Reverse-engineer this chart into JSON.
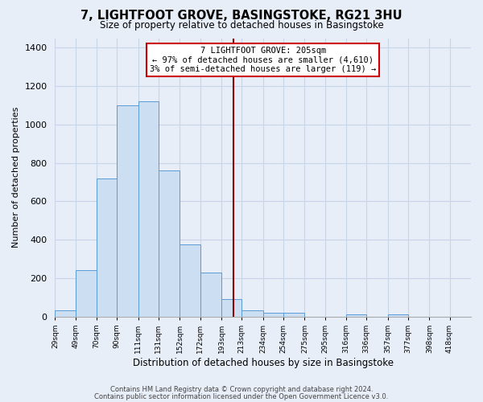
{
  "title": "7, LIGHTFOOT GROVE, BASINGSTOKE, RG21 3HU",
  "subtitle": "Size of property relative to detached houses in Basingstoke",
  "xlabel": "Distribution of detached houses by size in Basingstoke",
  "ylabel": "Number of detached properties",
  "bar_edges": [
    29,
    49,
    70,
    90,
    111,
    131,
    152,
    172,
    193,
    213,
    234,
    254,
    275,
    295,
    316,
    336,
    357,
    377,
    398,
    418,
    439
  ],
  "bar_heights": [
    30,
    240,
    720,
    1100,
    1120,
    760,
    375,
    228,
    90,
    30,
    20,
    20,
    0,
    0,
    10,
    0,
    10,
    0,
    0,
    0
  ],
  "bar_color": "#ccdff2",
  "bar_edge_color": "#5b9bd5",
  "vline_x": 205,
  "vline_color": "#8b0000",
  "annotation_title": "7 LIGHTFOOT GROVE: 205sqm",
  "annotation_line1": "← 97% of detached houses are smaller (4,610)",
  "annotation_line2": "3% of semi-detached houses are larger (119) →",
  "annotation_box_color": "#ffffff",
  "annotation_border_color": "#cc0000",
  "ylim": [
    0,
    1450
  ],
  "yticks": [
    0,
    200,
    400,
    600,
    800,
    1000,
    1200,
    1400
  ],
  "footnote1": "Contains HM Land Registry data © Crown copyright and database right 2024.",
  "footnote2": "Contains public sector information licensed under the Open Government Licence v3.0.",
  "bg_color": "#e8eef8",
  "grid_color": "#c8d4e8",
  "plot_bg": "#e8eef8"
}
